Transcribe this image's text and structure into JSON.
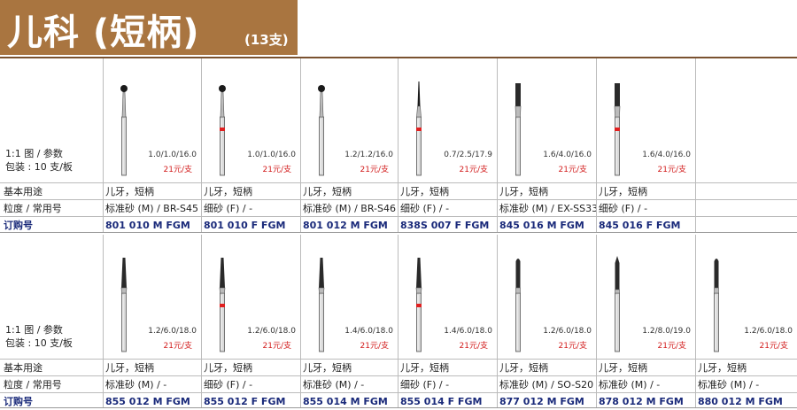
{
  "header": {
    "title": "儿科 (短柄)",
    "count": "(13支)"
  },
  "legend": {
    "line1": "1:1 图 / 参数",
    "line2": "包装 : 10 支/板"
  },
  "row_labels": {
    "usage": "基本用途",
    "grit": "粒度 / 常用号",
    "order": "订购号"
  },
  "section1": [
    {
      "spec": "1.0/1.0/16.0",
      "price": "21元/支",
      "usage": "儿牙，短柄",
      "grit": "标准砂 (M) / BR-S45",
      "code": "801 010 M FGM",
      "shape": "ball",
      "band": "none"
    },
    {
      "spec": "1.0/1.0/16.0",
      "price": "21元/支",
      "usage": "儿牙，短柄",
      "grit": "细砂 (F) / -",
      "code": "801 010 F FGM",
      "shape": "ball",
      "band": "red"
    },
    {
      "spec": "1.2/1.2/16.0",
      "price": "21元/支",
      "usage": "儿牙，短柄",
      "grit": "标准砂 (M) / BR-S46",
      "code": "801 012 M FGM",
      "shape": "ball",
      "band": "none"
    },
    {
      "spec": "0.7/2.5/17.9",
      "price": "21元/支",
      "usage": "儿牙，短柄",
      "grit": "细砂 (F) / -",
      "code": "838S 007 F FGM",
      "shape": "needle",
      "band": "red"
    },
    {
      "spec": "1.6/4.0/16.0",
      "price": "21元/支",
      "usage": "儿牙，短柄",
      "grit": "标准砂 (M) / EX-SS33",
      "code": "845 016 M FGM",
      "shape": "cylinder",
      "band": "none"
    },
    {
      "spec": "1.6/4.0/16.0",
      "price": "21元/支",
      "usage": "儿牙，短柄",
      "grit": "细砂 (F) / -",
      "code": "845 016 F FGM",
      "shape": "cylinder",
      "band": "red"
    },
    {
      "spec": "",
      "price": "",
      "usage": "",
      "grit": "",
      "code": "",
      "shape": "none",
      "band": "none"
    }
  ],
  "section2": [
    {
      "spec": "1.2/6.0/18.0",
      "price": "21元/支",
      "usage": "儿牙，短柄",
      "grit": "标准砂 (M) / -",
      "code": "855 012 M FGM",
      "shape": "taper",
      "band": "none"
    },
    {
      "spec": "1.2/6.0/18.0",
      "price": "21元/支",
      "usage": "儿牙，短柄",
      "grit": "细砂 (F) / -",
      "code": "855 012 F FGM",
      "shape": "taper",
      "band": "red"
    },
    {
      "spec": "1.4/6.0/18.0",
      "price": "21元/支",
      "usage": "儿牙，短柄",
      "grit": "标准砂 (M) / -",
      "code": "855 014 M FGM",
      "shape": "taper",
      "band": "none"
    },
    {
      "spec": "1.4/6.0/18.0",
      "price": "21元/支",
      "usage": "儿牙，短柄",
      "grit": "细砂 (F) / -",
      "code": "855 014 F FGM",
      "shape": "taper",
      "band": "red"
    },
    {
      "spec": "1.2/6.0/18.0",
      "price": "21元/支",
      "usage": "儿牙，短柄",
      "grit": "标准砂 (M) / SO-S20",
      "code": "877 012 M FGM",
      "shape": "roundtip",
      "band": "none"
    },
    {
      "spec": "1.2/8.0/19.0",
      "price": "21元/支",
      "usage": "儿牙，短柄",
      "grit": "标准砂 (M) / -",
      "code": "878 012 M FGM",
      "shape": "pointed",
      "band": "none"
    },
    {
      "spec": "1.2/6.0/18.0",
      "price": "21元/支",
      "usage": "儿牙，短柄",
      "grit": "标准砂 (M) / -",
      "code": "880 012 M FGM",
      "shape": "roundtip",
      "band": "none"
    }
  ]
}
